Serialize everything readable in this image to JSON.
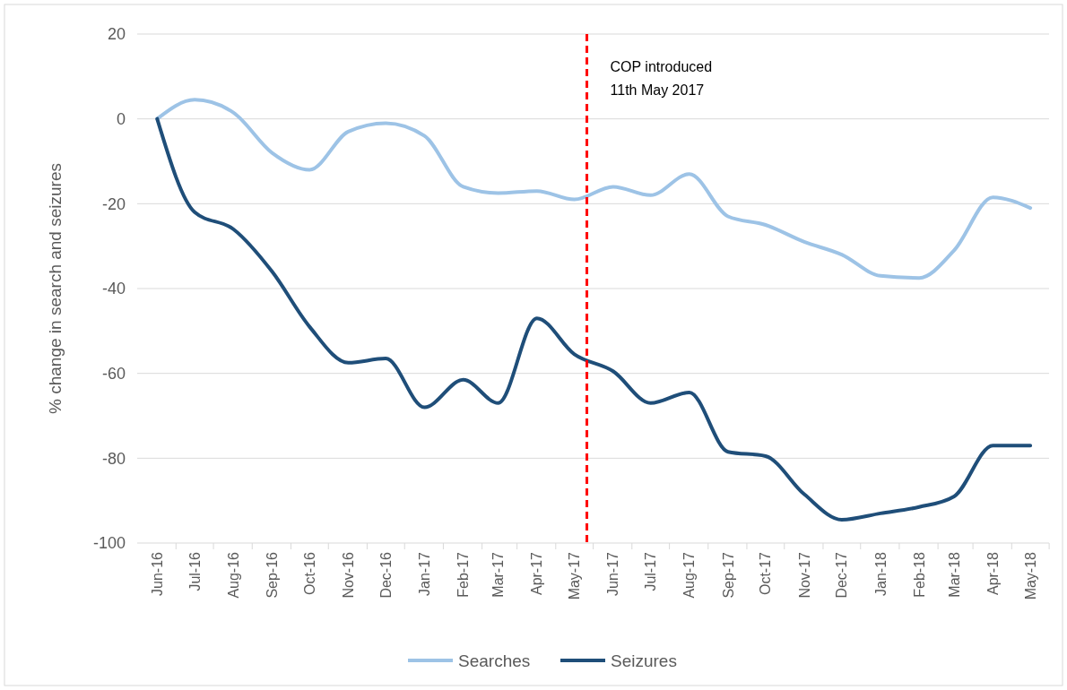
{
  "chart_data": {
    "type": "line",
    "ylabel": "% change in search and seizures",
    "x": [
      "2016-06",
      "2016-07",
      "2016-08",
      "2016-09",
      "2016-10",
      "2016-11",
      "2016-12",
      "2017-01",
      "2017-02",
      "2017-03",
      "2017-04",
      "2017-05",
      "2017-06",
      "2017-07",
      "2017-08",
      "2017-09",
      "2017-10",
      "2017-11",
      "2017-12",
      "2018-01",
      "2018-02",
      "2018-03",
      "2018-04",
      "2018-05"
    ],
    "xlim": [
      "2016-05-16",
      "2018-05-16"
    ],
    "xticks": [
      {
        "value": "2016-06",
        "label": "Jun-16"
      },
      {
        "value": "2016-07",
        "label": "Jul-16"
      },
      {
        "value": "2016-08",
        "label": "Aug-16"
      },
      {
        "value": "2016-09",
        "label": "Sep-16"
      },
      {
        "value": "2016-10",
        "label": "Oct-16"
      },
      {
        "value": "2016-11",
        "label": "Nov-16"
      },
      {
        "value": "2016-12",
        "label": "Dec-16"
      },
      {
        "value": "2017-01",
        "label": "Jan-17"
      },
      {
        "value": "2017-02",
        "label": "Feb-17"
      },
      {
        "value": "2017-03",
        "label": "Mar-17"
      },
      {
        "value": "2017-04",
        "label": "Apr-17"
      },
      {
        "value": "2017-05",
        "label": "May-17"
      },
      {
        "value": "2017-06",
        "label": "Jun-17"
      },
      {
        "value": "2017-07",
        "label": "Jul-17"
      },
      {
        "value": "2017-08",
        "label": "Aug-17"
      },
      {
        "value": "2017-09",
        "label": "Sep-17"
      },
      {
        "value": "2017-10",
        "label": "Oct-17"
      },
      {
        "value": "2017-11",
        "label": "Nov-17"
      },
      {
        "value": "2017-12",
        "label": "Dec-17"
      },
      {
        "value": "2018-01",
        "label": "Jan-18"
      },
      {
        "value": "2018-02",
        "label": "Feb-18"
      },
      {
        "value": "2018-03",
        "label": "Mar-18"
      },
      {
        "value": "2018-04",
        "label": "Apr-18"
      },
      {
        "value": "2018-05",
        "label": "May-18"
      }
    ],
    "ylim": [
      -100,
      20
    ],
    "yticks": [
      -100,
      -80,
      -60,
      -40,
      -20,
      0,
      20
    ],
    "grid": "y",
    "legend": "bottom",
    "line_style": "solid",
    "series": [
      {
        "name": "Searches",
        "color": "#9dc3e6",
        "values": [
          0,
          4.5,
          1.5,
          -8,
          -12,
          -3,
          -1,
          -4,
          -16,
          -17.5,
          -17,
          -19,
          -16,
          -18,
          -13,
          -23,
          -25,
          -29,
          -32,
          -37,
          -37.5,
          -31,
          -18.5,
          -21
        ]
      },
      {
        "name": "Seizures",
        "color": "#1f4e79",
        "values": [
          0,
          -22,
          -26,
          -36,
          -49,
          -57.5,
          -56.5,
          -68,
          -61.5,
          -67,
          -47,
          -55.5,
          -59.5,
          -67,
          -64.5,
          -78.5,
          -79.5,
          -88.5,
          -94.5,
          -93,
          -91.5,
          -89,
          -77,
          -77
        ]
      }
    ],
    "ref_lines": [
      {
        "axis": "x",
        "value": "2017-05-11",
        "label": "COP introduced\n11th May 2017",
        "color": "#ff0000",
        "line_style": "dashed"
      }
    ]
  }
}
